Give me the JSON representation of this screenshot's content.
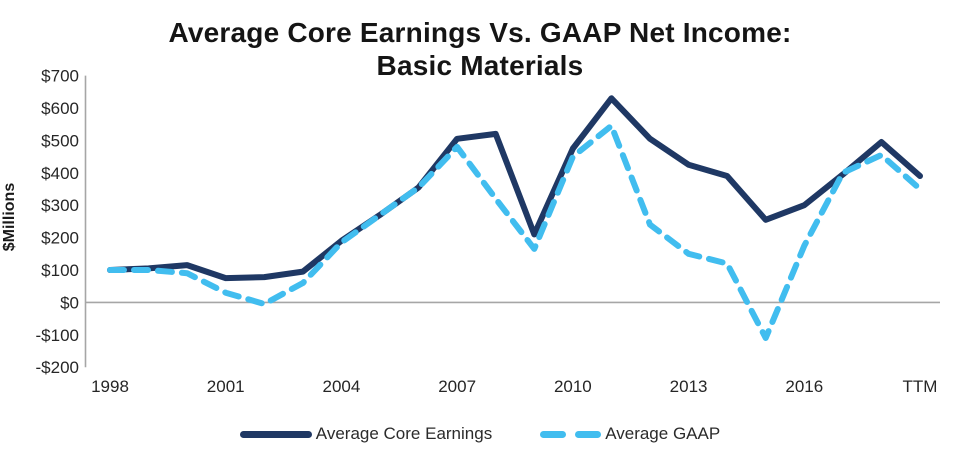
{
  "title_line1": "Average Core Earnings Vs. GAAP Net Income:",
  "title_line2": "Basic Materials",
  "colors": {
    "core": "#1F3864",
    "gaap": "#41BDEF",
    "axis_line": "#A6A6A6",
    "zero_line": "#A6A6A6",
    "text": "#262626"
  },
  "chart_data": {
    "type": "line",
    "title": "Average Core Earnings Vs. GAAP Net Income: Basic Materials",
    "ylabel": "$Millions",
    "xlabel": "",
    "ylim": [
      -200,
      700
    ],
    "y_tick_step": 100,
    "y_tick_labels": [
      "$700",
      "$600",
      "$500",
      "$400",
      "$300",
      "$200",
      "$100",
      "$0",
      "-$100",
      "-$200"
    ],
    "x": [
      "1998",
      "1999",
      "2000",
      "2001",
      "2002",
      "2003",
      "2004",
      "2005",
      "2006",
      "2007",
      "2008",
      "2009",
      "2010",
      "2011",
      "2012",
      "2013",
      "2014",
      "2015",
      "2016",
      "2017",
      "2018",
      "TTM"
    ],
    "x_tick_labels": [
      "1998",
      "2001",
      "2004",
      "2007",
      "2010",
      "2013",
      "2016",
      "TTM"
    ],
    "x_tick_every": 3,
    "grid": false,
    "legend_position": "bottom",
    "series": [
      {
        "name": "Average Core Earnings",
        "style": "solid",
        "color": "#1F3864",
        "values": [
          100,
          105,
          115,
          75,
          78,
          95,
          190,
          270,
          355,
          505,
          520,
          210,
          475,
          630,
          505,
          425,
          390,
          255,
          300,
          395,
          495,
          390
        ]
      },
      {
        "name": "Average GAAP",
        "style": "dashed",
        "color": "#41BDEF",
        "values": [
          100,
          100,
          90,
          30,
          -5,
          60,
          185,
          270,
          355,
          480,
          320,
          165,
          450,
          545,
          240,
          150,
          120,
          -110,
          175,
          400,
          455,
          350
        ]
      }
    ]
  }
}
